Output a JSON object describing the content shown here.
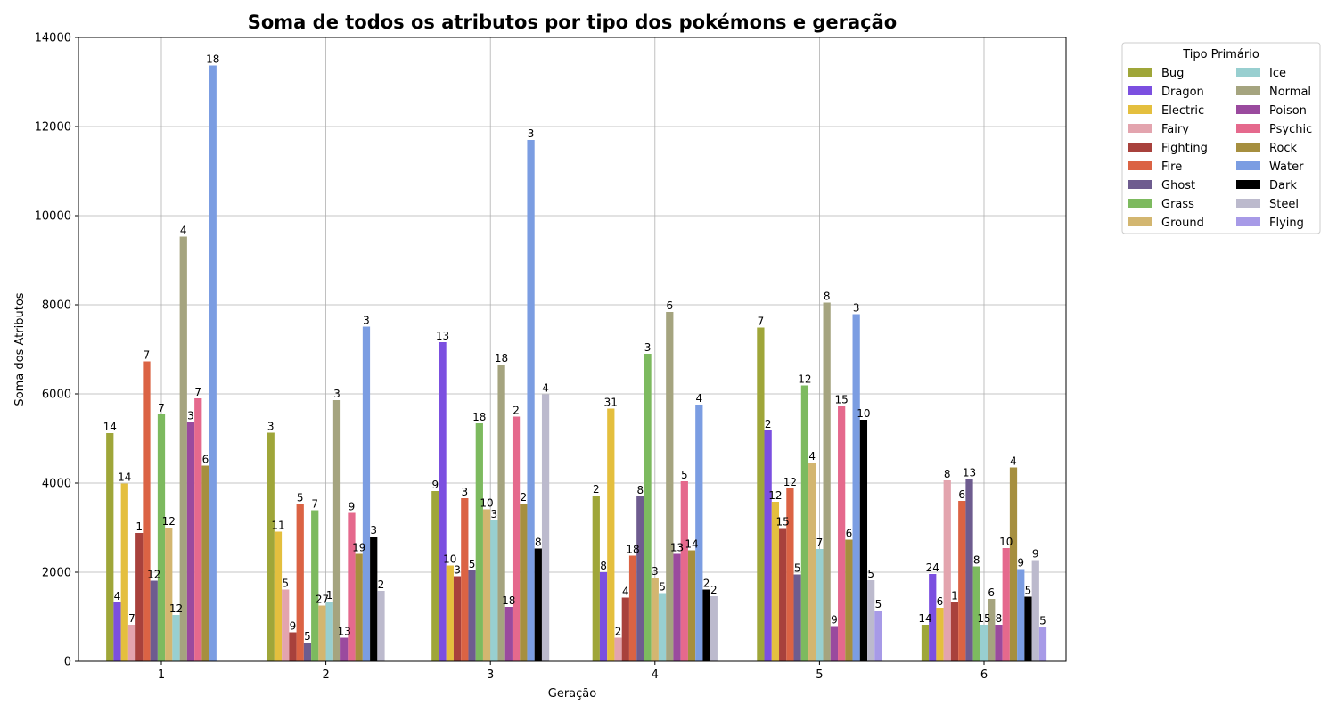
{
  "chart_data": {
    "type": "bar",
    "title": "Soma de todos os atributos por tipo dos pokémons e geração",
    "xlabel": "Geração",
    "ylabel": "Soma dos Atributos",
    "ylim": [
      0,
      14000
    ],
    "yticks": [
      "0",
      "2000",
      "4000",
      "6000",
      "8000",
      "10000",
      "12000",
      "14000"
    ],
    "grid": true,
    "legend_title": "Tipo Primário",
    "legend_position": "outside-top-right",
    "categories": [
      "1",
      "2",
      "3",
      "4",
      "5",
      "6"
    ],
    "series": [
      {
        "name": "Bug",
        "color": "#9fa639",
        "values": [
          5120,
          5130,
          3820,
          3720,
          7490,
          820
        ],
        "labels": [
          "14",
          "3",
          "9",
          "2",
          "7",
          "14"
        ]
      },
      {
        "name": "Dragon",
        "color": "#7b4fe0",
        "values": [
          1320,
          null,
          7160,
          2000,
          5180,
          1960
        ],
        "labels": [
          "4",
          "",
          "13",
          "8",
          "2",
          "24"
        ]
      },
      {
        "name": "Electric",
        "color": "#e4bf3e",
        "values": [
          3990,
          2910,
          2150,
          5670,
          3580,
          1200
        ],
        "labels": [
          "14",
          "11",
          "10",
          "31",
          "12",
          "6"
        ]
      },
      {
        "name": "Fairy",
        "color": "#e3a4ae",
        "values": [
          820,
          1610,
          null,
          530,
          null,
          4060
        ],
        "labels": [
          "7",
          "5",
          "",
          "2",
          "",
          "8"
        ]
      },
      {
        "name": "Fighting",
        "color": "#a8413c",
        "values": [
          2880,
          650,
          1910,
          1430,
          2990,
          1330
        ],
        "labels": [
          "1",
          "9",
          "3",
          "4",
          "15",
          "1"
        ]
      },
      {
        "name": "Fire",
        "color": "#db6344",
        "values": [
          6730,
          3530,
          3660,
          2370,
          3880,
          3600
        ],
        "labels": [
          "7",
          "5",
          "3",
          "18",
          "12",
          "6"
        ]
      },
      {
        "name": "Ghost",
        "color": "#6e5c8f",
        "values": [
          1810,
          420,
          2040,
          3700,
          1950,
          4090
        ],
        "labels": [
          "12",
          "5",
          "5",
          "8",
          "5",
          "13"
        ]
      },
      {
        "name": "Grass",
        "color": "#7dba5f",
        "values": [
          5540,
          3390,
          5340,
          6900,
          6190,
          2130
        ],
        "labels": [
          "7",
          "7",
          "18",
          "3",
          "12",
          "8"
        ]
      },
      {
        "name": "Ground",
        "color": "#d3b670",
        "values": [
          3000,
          1250,
          3410,
          1880,
          4460,
          null
        ],
        "labels": [
          "12",
          "27",
          "10",
          "3",
          "4",
          ""
        ]
      },
      {
        "name": "Ice",
        "color": "#98cfd0",
        "values": [
          1040,
          1340,
          3160,
          1530,
          2520,
          820
        ],
        "labels": [
          "12",
          "1",
          "3",
          "5",
          "7",
          "15"
        ]
      },
      {
        "name": "Normal",
        "color": "#a5a47f",
        "values": [
          9530,
          5860,
          6660,
          7840,
          8050,
          1400
        ],
        "labels": [
          "4",
          "3",
          "18",
          "6",
          "8",
          "6"
        ]
      },
      {
        "name": "Poison",
        "color": "#9a4a9e",
        "values": [
          5370,
          530,
          1220,
          2410,
          790,
          820
        ],
        "labels": [
          "3",
          "13",
          "18",
          "13",
          "9",
          "8"
        ]
      },
      {
        "name": "Psychic",
        "color": "#e5698d",
        "values": [
          5900,
          3330,
          5490,
          4040,
          5730,
          2540
        ],
        "labels": [
          "7",
          "9",
          "2",
          "5",
          "15",
          "10"
        ]
      },
      {
        "name": "Rock",
        "color": "#a68f3f",
        "values": [
          4390,
          2410,
          3540,
          2490,
          2730,
          4350
        ],
        "labels": [
          "6",
          "19",
          "2",
          "14",
          "6",
          "4"
        ]
      },
      {
        "name": "Water",
        "color": "#7b9de2",
        "values": [
          13370,
          7510,
          11700,
          5760,
          7790,
          2070
        ],
        "labels": [
          "18",
          "3",
          "3",
          "4",
          "3",
          "9"
        ]
      },
      {
        "name": "Dark",
        "color": "#000000",
        "values": [
          null,
          2800,
          2530,
          1610,
          5420,
          1450
        ],
        "labels": [
          "",
          "3",
          "8",
          "2",
          "10",
          "5"
        ]
      },
      {
        "name": "Steel",
        "color": "#bcbacd",
        "values": [
          null,
          1580,
          5990,
          1460,
          1820,
          2270
        ],
        "labels": [
          "",
          "2",
          "4",
          "2",
          "5",
          "9"
        ]
      },
      {
        "name": "Flying",
        "color": "#a79ae7",
        "values": [
          null,
          null,
          null,
          null,
          1140,
          770
        ],
        "labels": [
          "",
          "",
          "",
          "",
          "5",
          "5"
        ]
      }
    ]
  }
}
